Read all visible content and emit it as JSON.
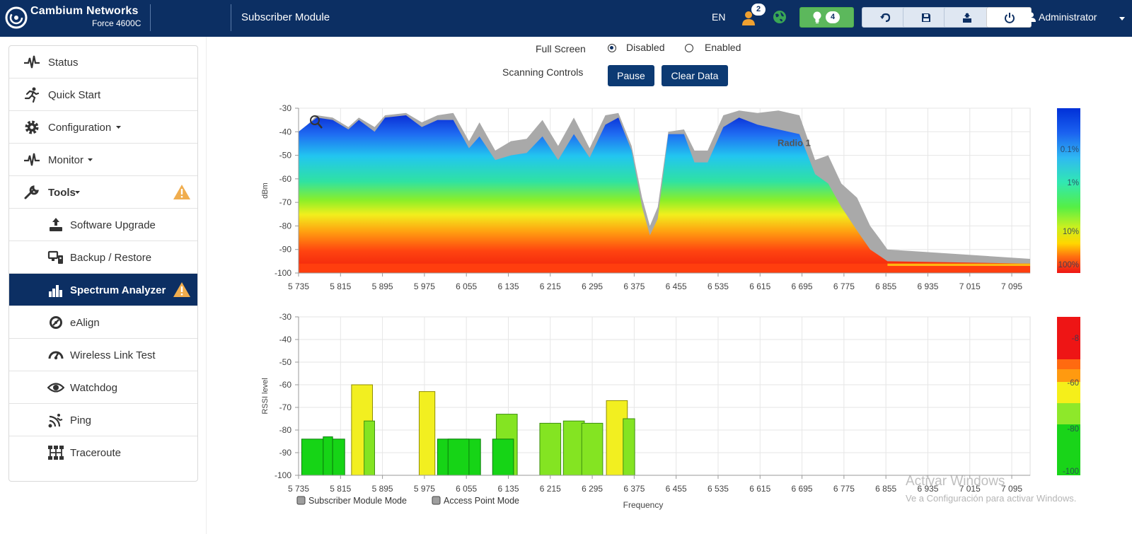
{
  "header": {
    "brand": "Cambium Networks",
    "model": "Force 4600C",
    "page_title": "Subscriber Module",
    "language": "EN",
    "users_count": "2",
    "alerts_count": "4",
    "user": "Administrator",
    "colors": {
      "bar": "#0c2f63",
      "ok": "#5cb85c"
    },
    "icons": [
      "users-icon",
      "globe-icon",
      "lightbulb-icon",
      "undo-icon",
      "save-icon",
      "reboot-flash-icon",
      "power-icon",
      "user-icon"
    ]
  },
  "sidebar": {
    "items": [
      {
        "label": "Status",
        "icon": "pulse-icon"
      },
      {
        "label": "Quick Start",
        "icon": "runner-icon"
      },
      {
        "label": "Configuration",
        "icon": "gear-icon"
      },
      {
        "label": "Monitor",
        "icon": "pulse-icon"
      },
      {
        "label": "Tools",
        "icon": "wrench-icon"
      },
      {
        "label": "Software Upgrade",
        "icon": "upgrade-icon"
      },
      {
        "label": "Backup / Restore",
        "icon": "backup-icon"
      },
      {
        "label": "Spectrum Analyzer",
        "icon": "bar-chart-icon"
      },
      {
        "label": "eAlign",
        "icon": "align-icon"
      },
      {
        "label": "Wireless Link Test",
        "icon": "gauge-icon"
      },
      {
        "label": "Watchdog",
        "icon": "eye-icon"
      },
      {
        "label": "Ping",
        "icon": "ping-icon"
      },
      {
        "label": "Traceroute",
        "icon": "network-icon"
      }
    ],
    "active": "Spectrum Analyzer"
  },
  "controls": {
    "full_screen_label": "Full Screen",
    "disabled_label": "Disabled",
    "enabled_label": "Enabled",
    "full_screen_value": "Disabled",
    "scanning_label": "Scanning Controls",
    "pause_label": "Pause",
    "clear_label": "Clear Data"
  },
  "chart_data": [
    {
      "type": "heatmap",
      "ylabel": "dBm",
      "ylim": [
        -100,
        -30
      ],
      "y_ticks": [
        "-30",
        "-40",
        "-50",
        "-60",
        "-70",
        "-80",
        "-90",
        "-100"
      ],
      "x_ticks": [
        "5 735",
        "5 815",
        "5 895",
        "5 975",
        "6 055",
        "6 135",
        "6 215",
        "6 295",
        "6 375",
        "6 455",
        "6 535",
        "6 615",
        "6 695",
        "6 775",
        "6 855",
        "6 935",
        "7 015",
        "7 095"
      ],
      "xlim": [
        5735,
        7130
      ],
      "annotation": "Radio 1",
      "color_scale_labels": [
        "0.1%",
        "1%",
        "10%",
        "100%"
      ],
      "envelope": [
        [
          5735,
          -40
        ],
        [
          5752,
          -37
        ],
        [
          5770,
          -33
        ],
        [
          5800,
          -34
        ],
        [
          5830,
          -38
        ],
        [
          5850,
          -34
        ],
        [
          5880,
          -38
        ],
        [
          5900,
          -33
        ],
        [
          5940,
          -32
        ],
        [
          5970,
          -36
        ],
        [
          6000,
          -33
        ],
        [
          6030,
          -32
        ],
        [
          6060,
          -44
        ],
        [
          6080,
          -36
        ],
        [
          6110,
          -48
        ],
        [
          6140,
          -44
        ],
        [
          6170,
          -43
        ],
        [
          6200,
          -35
        ],
        [
          6230,
          -46
        ],
        [
          6260,
          -34
        ],
        [
          6290,
          -47
        ],
        [
          6320,
          -33
        ],
        [
          6345,
          -32
        ],
        [
          6370,
          -46
        ],
        [
          6390,
          -68
        ],
        [
          6405,
          -80
        ],
        [
          6420,
          -72
        ],
        [
          6440,
          -40
        ],
        [
          6470,
          -39
        ],
        [
          6490,
          -48
        ],
        [
          6515,
          -48
        ],
        [
          6545,
          -33
        ],
        [
          6575,
          -31
        ],
        [
          6610,
          -32
        ],
        [
          6650,
          -31
        ],
        [
          6690,
          -33
        ],
        [
          6720,
          -52
        ],
        [
          6745,
          -50
        ],
        [
          6770,
          -62
        ],
        [
          6800,
          -68
        ],
        [
          6825,
          -80
        ],
        [
          6845,
          -86
        ],
        [
          6858,
          -90
        ],
        [
          7130,
          -94
        ]
      ],
      "signal_top": [
        [
          5735,
          -40
        ],
        [
          5752,
          -37
        ],
        [
          5770,
          -34
        ],
        [
          5800,
          -35
        ],
        [
          5830,
          -39
        ],
        [
          5850,
          -35
        ],
        [
          5880,
          -40
        ],
        [
          5900,
          -34
        ],
        [
          5940,
          -33
        ],
        [
          5970,
          -38
        ],
        [
          6000,
          -35
        ],
        [
          6030,
          -35
        ],
        [
          6060,
          -47
        ],
        [
          6080,
          -42
        ],
        [
          6110,
          -52
        ],
        [
          6140,
          -50
        ],
        [
          6170,
          -49
        ],
        [
          6200,
          -42
        ],
        [
          6230,
          -52
        ],
        [
          6260,
          -41
        ],
        [
          6290,
          -51
        ],
        [
          6320,
          -37
        ],
        [
          6345,
          -34
        ],
        [
          6370,
          -48
        ],
        [
          6390,
          -72
        ],
        [
          6405,
          -84
        ],
        [
          6420,
          -77
        ],
        [
          6440,
          -41
        ],
        [
          6470,
          -41
        ],
        [
          6490,
          -53
        ],
        [
          6515,
          -53
        ],
        [
          6545,
          -38
        ],
        [
          6575,
          -34
        ],
        [
          6610,
          -37
        ],
        [
          6650,
          -39
        ],
        [
          6690,
          -41
        ],
        [
          6720,
          -58
        ],
        [
          6745,
          -62
        ],
        [
          6770,
          -72
        ],
        [
          6800,
          -82
        ],
        [
          6825,
          -90
        ],
        [
          6845,
          -93
        ],
        [
          6858,
          -95
        ],
        [
          7130,
          -96
        ]
      ]
    },
    {
      "type": "bar",
      "ylabel": "RSSI level",
      "xlabel": "Frequency",
      "ylim": [
        -100,
        -30
      ],
      "y_ticks": [
        "-30",
        "-40",
        "-50",
        "-60",
        "-70",
        "-80",
        "-90",
        "-100"
      ],
      "x_ticks": [
        "5 735",
        "5 815",
        "5 895",
        "5 975",
        "6 055",
        "6 135",
        "6 215",
        "6 295",
        "6 375",
        "6 455",
        "6 535",
        "6 615",
        "6 695",
        "6 775",
        "6 855",
        "6 935",
        "7 015",
        "7 095"
      ],
      "xlim": [
        5735,
        7130
      ],
      "legend": [
        "Subscriber Module Mode",
        "Access Point Mode"
      ],
      "legend_position": "bottom-left",
      "color_scale_labels": [
        "-8",
        "-60",
        "-80",
        "-100"
      ],
      "bars": [
        {
          "x0": 5741,
          "x1": 5782,
          "value": -84
        },
        {
          "x0": 5782,
          "x1": 5800,
          "value": -83
        },
        {
          "x0": 5800,
          "x1": 5823,
          "value": -84
        },
        {
          "x0": 5836,
          "x1": 5876,
          "value": -60
        },
        {
          "x0": 5860,
          "x1": 5880,
          "value": -76
        },
        {
          "x0": 5965,
          "x1": 5995,
          "value": -63
        },
        {
          "x0": 6000,
          "x1": 6082,
          "value": -84
        },
        {
          "x0": 6020,
          "x1": 6060,
          "value": -84
        },
        {
          "x0": 6112,
          "x1": 6152,
          "value": -73
        },
        {
          "x0": 6105,
          "x1": 6145,
          "value": -84
        },
        {
          "x0": 6195,
          "x1": 6235,
          "value": -77
        },
        {
          "x0": 6240,
          "x1": 6280,
          "value": -76
        },
        {
          "x0": 6275,
          "x1": 6315,
          "value": -77
        },
        {
          "x0": 6322,
          "x1": 6362,
          "value": -67
        },
        {
          "x0": 6354,
          "x1": 6376,
          "value": -75
        }
      ]
    }
  ],
  "watermark": {
    "title": "Activar Windows",
    "subtitle": "Ve a Configuración para activar Windows."
  }
}
